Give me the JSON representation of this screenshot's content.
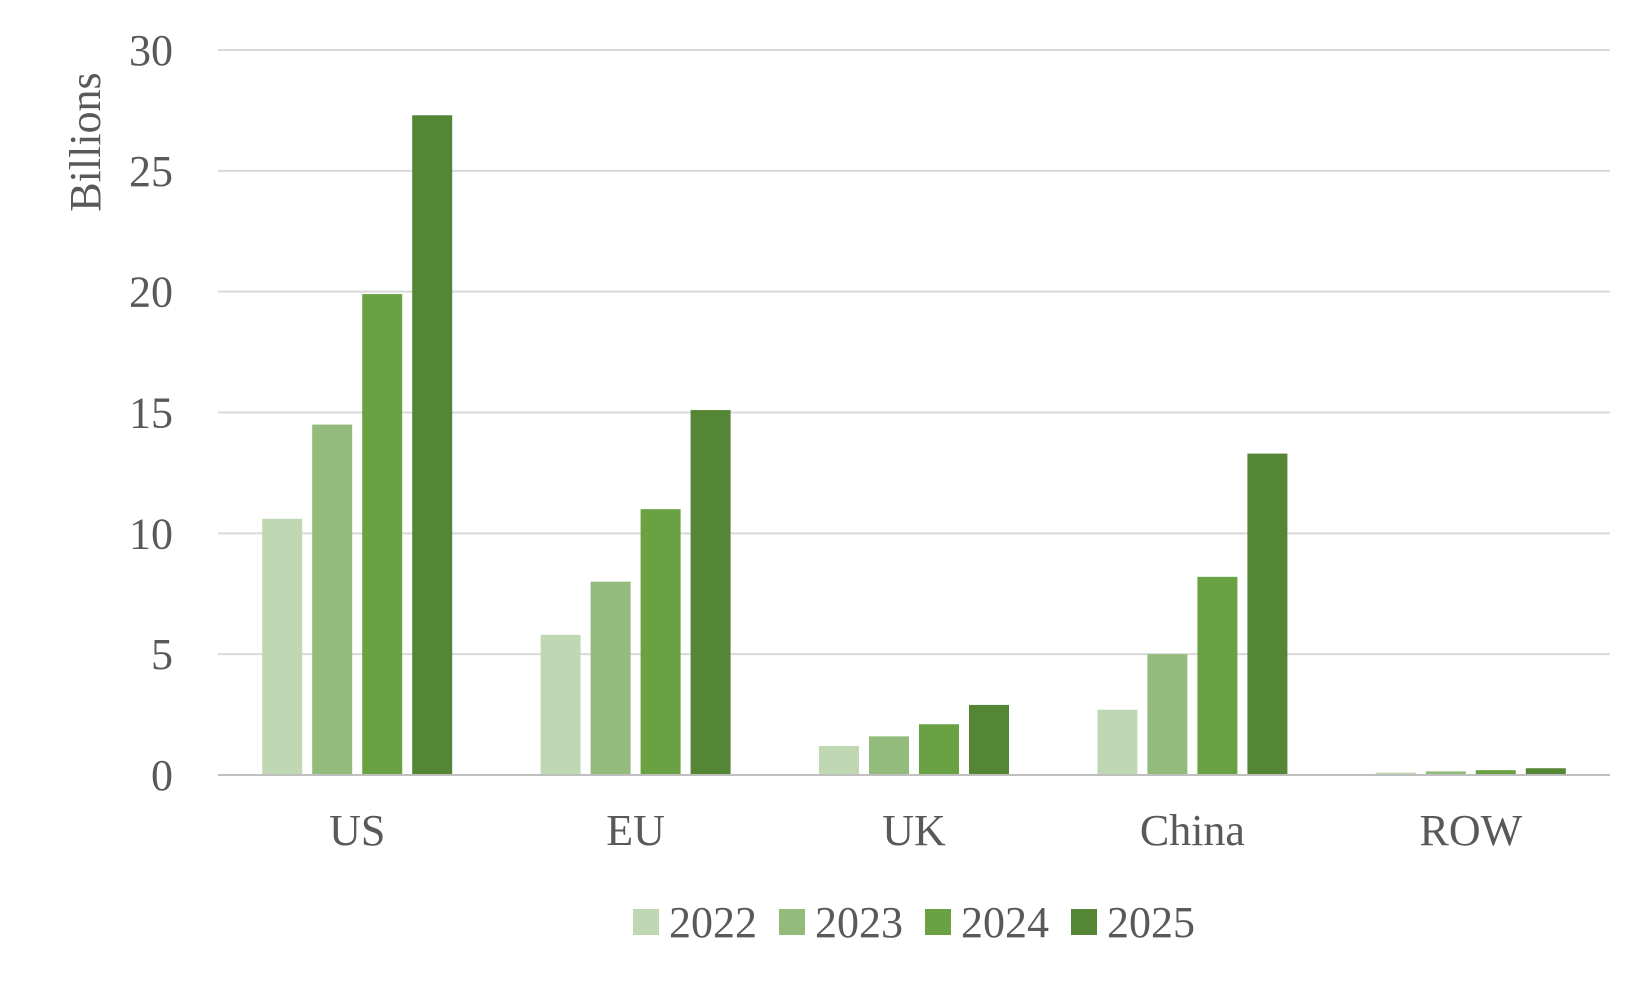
{
  "chart_data": {
    "type": "bar",
    "title": "",
    "xlabel": "",
    "ylabel": "Billions",
    "ylim": [
      0,
      30
    ],
    "yticks": [
      0,
      5,
      10,
      15,
      20,
      25,
      30
    ],
    "grid": true,
    "legend_position": "bottom",
    "categories": [
      "US",
      "EU",
      "UK",
      "China",
      "ROW"
    ],
    "series": [
      {
        "name": "2022",
        "color": "#c0d7b3",
        "values": [
          10.6,
          5.8,
          1.2,
          2.7,
          0.1
        ]
      },
      {
        "name": "2023",
        "color": "#93bb7b",
        "values": [
          14.5,
          8.0,
          1.6,
          5.0,
          0.15
        ]
      },
      {
        "name": "2024",
        "color": "#6aa143",
        "values": [
          19.9,
          11.0,
          2.1,
          8.2,
          0.2
        ]
      },
      {
        "name": "2025",
        "color": "#548635",
        "values": [
          27.3,
          15.1,
          2.9,
          13.3,
          0.28
        ]
      }
    ]
  },
  "colors": {
    "gridline": "#d9d9d9",
    "axis_line": "#bfbfbf",
    "text": "#595959"
  }
}
